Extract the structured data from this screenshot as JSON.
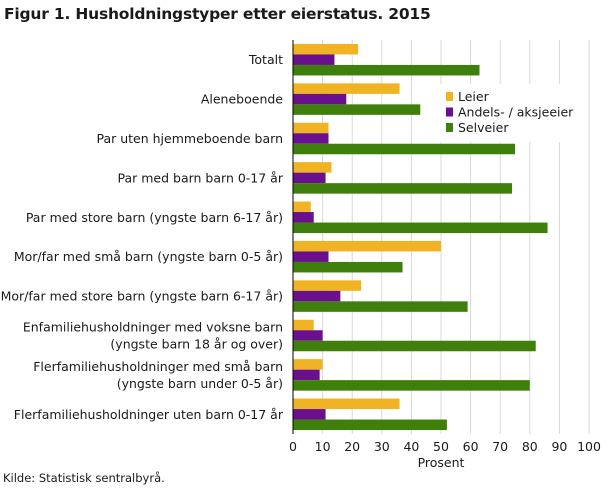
{
  "title": "Figur 1. Husholdningstyper etter eierstatus. 2015",
  "source": "Kilde: Statistisk sentralbyrå.",
  "colors": {
    "leier": "#f0b323",
    "andels": "#6a0f8e",
    "selveier": "#3f7f0b",
    "grid": "#d9d9d9",
    "axis": "#000000"
  },
  "chart_data": {
    "type": "bar",
    "orientation": "horizontal",
    "title": "Figur 1. Husholdningstyper etter eierstatus. 2015",
    "xlabel": "Prosent",
    "ylabel": "",
    "xlim": [
      0,
      100
    ],
    "ticks": [
      0,
      10,
      20,
      30,
      40,
      50,
      60,
      70,
      80,
      90,
      100
    ],
    "grid": true,
    "legend_position": "top-right",
    "categories": [
      [
        "Totalt"
      ],
      [
        "Aleneboende"
      ],
      [
        "Par uten hjemmeboende barn"
      ],
      [
        "Par med barn  barn 0-17 år"
      ],
      [
        "Par med store barn (yngste barn 6-17 år)"
      ],
      [
        "Mor/far med små barn (yngste barn 0-5 år)"
      ],
      [
        "Mor/far med store barn (yngste barn 6-17 år)"
      ],
      [
        "Enfamiliehusholdninger med voksne barn",
        "(yngste barn 18 år og over)"
      ],
      [
        "Flerfamiliehusholdninger med små barn",
        "(yngste barn under 0-5 år)"
      ],
      [
        "Flerfamiliehusholdninger uten barn 0-17 år"
      ]
    ],
    "series": [
      {
        "name": "Leier",
        "color": "#f0b323",
        "values": [
          22,
          36,
          12,
          13,
          6,
          50,
          23,
          7,
          10,
          36
        ]
      },
      {
        "name": "Andels- / aksjeeier",
        "color": "#6a0f8e",
        "values": [
          14,
          18,
          12,
          11,
          7,
          12,
          16,
          10,
          9,
          11
        ]
      },
      {
        "name": "Selveier",
        "color": "#3f7f0b",
        "values": [
          63,
          43,
          75,
          74,
          86,
          37,
          59,
          82,
          80,
          52
        ]
      }
    ]
  }
}
